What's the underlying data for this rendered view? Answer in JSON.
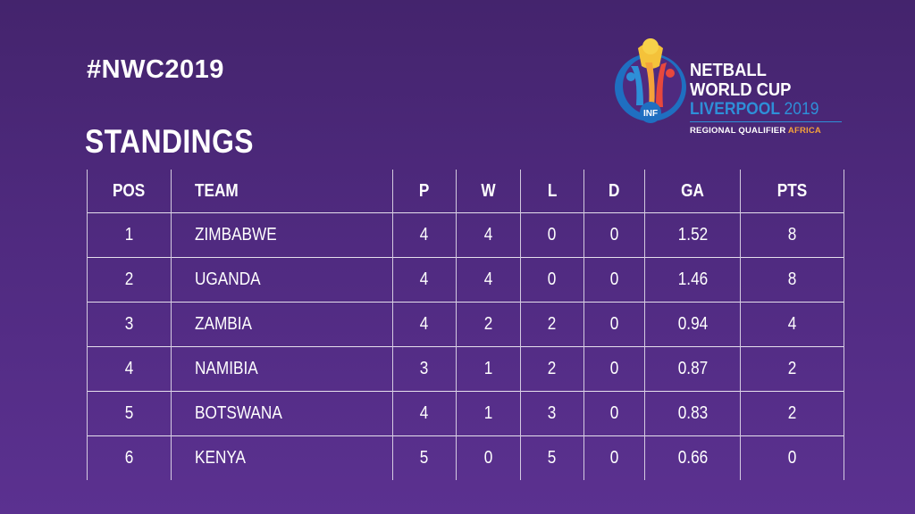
{
  "hashtag": "#NWC2019",
  "heading": "STANDINGS",
  "logo": {
    "line1": "NETBALL",
    "line2": "WORLD CUP",
    "city": "LIVERPOOL",
    "year": "2019",
    "qualifier": "REGIONAL QUALIFIER",
    "region": "AFRICA",
    "badge": "INF"
  },
  "colors": {
    "background_top": "#44246d",
    "background_bottom": "#5b3190",
    "accent_blue": "#2e8fd8",
    "accent_orange": "#f4a23a"
  },
  "table": {
    "headers": [
      "POS",
      "TEAM",
      "P",
      "W",
      "L",
      "D",
      "GA",
      "PTS"
    ],
    "rows": [
      [
        "1",
        "ZIMBABWE",
        "4",
        "4",
        "0",
        "0",
        "1.52",
        "8"
      ],
      [
        "2",
        "UGANDA",
        "4",
        "4",
        "0",
        "0",
        "1.46",
        "8"
      ],
      [
        "3",
        "ZAMBIA",
        "4",
        "2",
        "2",
        "0",
        "0.94",
        "4"
      ],
      [
        "4",
        "NAMIBIA",
        "3",
        "1",
        "2",
        "0",
        "0.87",
        "2"
      ],
      [
        "5",
        "BOTSWANA",
        "4",
        "1",
        "3",
        "0",
        "0.83",
        "2"
      ],
      [
        "6",
        "KENYA",
        "5",
        "0",
        "5",
        "0",
        "0.66",
        "0"
      ]
    ]
  }
}
